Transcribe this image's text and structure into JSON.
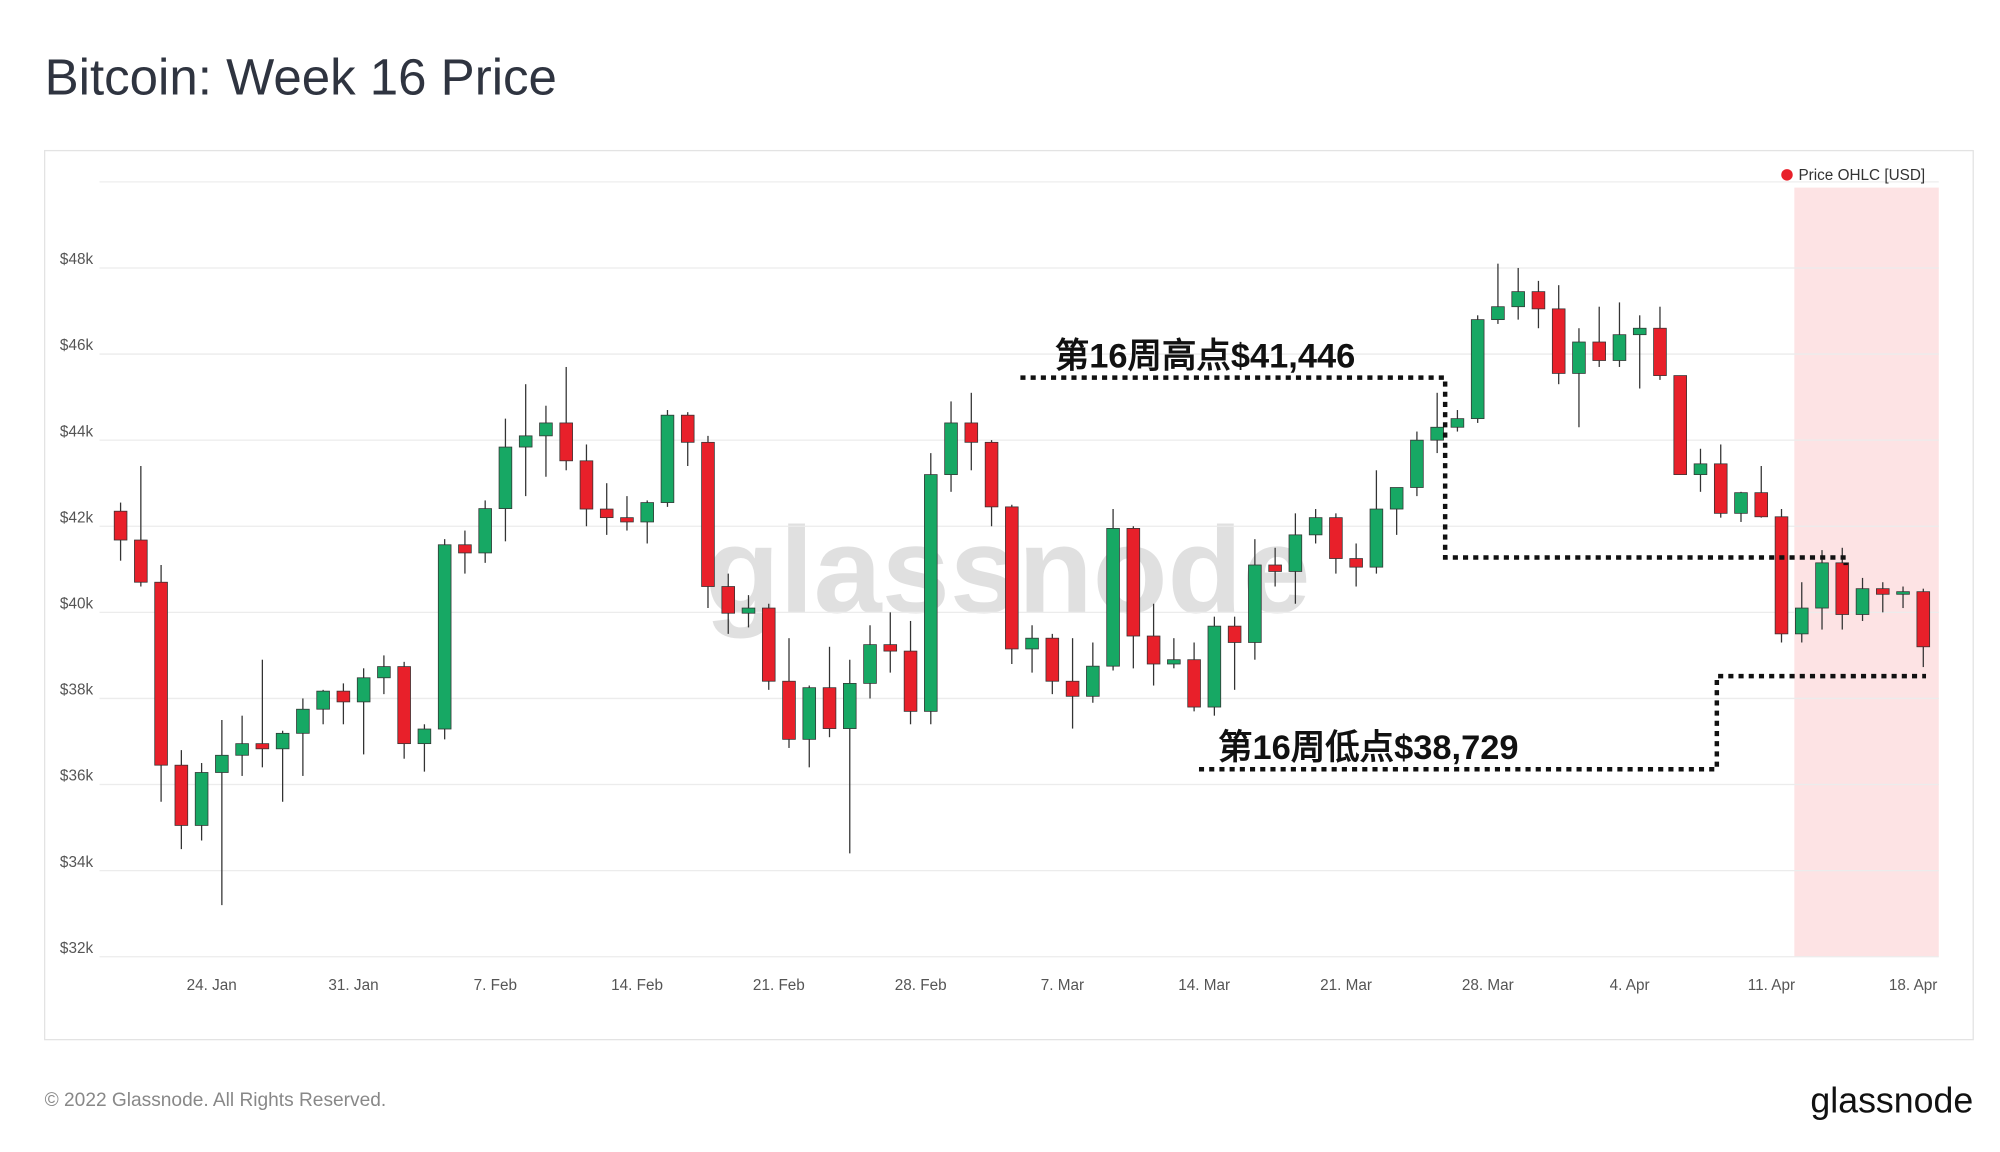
{
  "title": "Bitcoin: Week 16 Price",
  "footer": "© 2022 Glassnode. All Rights Reserved.",
  "logo": "glassnode",
  "chart_data": {
    "type": "candlestick",
    "watermark": "glassnode",
    "x": [
      "19. Jan",
      "20. Jan",
      "21. Jan",
      "22. Jan",
      "23. Jan",
      "24. Jan",
      "25. Jan",
      "26. Jan",
      "27. Jan",
      "28. Jan",
      "29. Jan",
      "30. Jan",
      "31. Jan",
      "1. Feb",
      "2. Feb",
      "3. Feb",
      "4. Feb",
      "5. Feb",
      "6. Feb",
      "7. Feb",
      "8. Feb",
      "9. Feb",
      "10. Feb",
      "11. Feb",
      "12. Feb",
      "13. Feb",
      "14. Feb",
      "15. Feb",
      "16. Feb",
      "17. Feb",
      "18. Feb",
      "19. Feb",
      "20. Feb",
      "21. Feb",
      "22. Feb",
      "23. Feb",
      "24. Feb",
      "25. Feb",
      "26. Feb",
      "27. Feb",
      "28. Feb",
      "1. Mar",
      "2. Mar",
      "3. Mar",
      "4. Mar",
      "5. Mar",
      "6. Mar",
      "7. Mar",
      "8. Mar",
      "9. Mar",
      "10. Mar",
      "11. Mar",
      "12. Mar",
      "13. Mar",
      "14. Mar",
      "15. Mar",
      "16. Mar",
      "17. Mar",
      "18. Mar",
      "19. Mar",
      "20. Mar",
      "21. Mar",
      "22. Mar",
      "23. Mar",
      "24. Mar",
      "25. Mar",
      "26. Mar",
      "27. Mar",
      "28. Mar",
      "29. Mar",
      "30. Mar",
      "31. Mar",
      "1. Apr",
      "2. Apr",
      "3. Apr",
      "4. Apr",
      "5. Apr",
      "6. Apr",
      "7. Apr",
      "8. Apr",
      "9. Apr",
      "10. Apr",
      "11. Apr",
      "12. Apr",
      "13. Apr",
      "14. Apr",
      "15. Apr",
      "16. Apr",
      "17. Apr",
      "18. Apr"
    ],
    "series": [
      {
        "name": "Price OHLC [USD]",
        "color": "#e8202a",
        "up_color": "#17a864",
        "down_color": "#e8202a",
        "open": [
          42350,
          41680,
          40700,
          36450,
          35050,
          36280,
          36680,
          36950,
          36830,
          37190,
          37750,
          38170,
          37920,
          38480,
          38740,
          36950,
          37290,
          41570,
          41380,
          42410,
          43840,
          44100,
          44400,
          43520,
          42400,
          42200,
          42100,
          42550,
          44580,
          43950,
          40600,
          39980,
          40100,
          38400,
          37050,
          38250,
          37300,
          38350,
          39250,
          39100,
          37700,
          43200,
          44400,
          43950,
          42450,
          39150,
          39400,
          38400,
          38050,
          38750,
          41950,
          39450,
          38800,
          38900,
          37800,
          39680,
          39300,
          41100,
          40950,
          41800,
          42200,
          41250,
          41050,
          42400,
          42900,
          44000,
          44300,
          44500,
          46800,
          47100,
          47450,
          47050,
          45550,
          46280,
          45850,
          46450,
          46600,
          45500,
          43200,
          43450,
          42300,
          42780,
          42220,
          39500,
          40100,
          41150,
          39950,
          40550,
          40420,
          40480
        ],
        "high": [
          42550,
          43400,
          41100,
          36800,
          36500,
          37500,
          37600,
          38900,
          37250,
          38000,
          38200,
          38350,
          38700,
          39000,
          38850,
          37400,
          41700,
          41900,
          42600,
          44500,
          45300,
          44800,
          45700,
          43900,
          43000,
          42700,
          42600,
          44700,
          44650,
          44100,
          40900,
          40400,
          40200,
          39400,
          38300,
          39200,
          38900,
          39700,
          40000,
          39800,
          43700,
          44900,
          45100,
          44000,
          42500,
          39700,
          39500,
          39400,
          39300,
          42400,
          42000,
          40200,
          39400,
          39300,
          39900,
          39900,
          41700,
          41500,
          42300,
          42400,
          42300,
          41600,
          43300,
          42900,
          44200,
          45100,
          44700,
          46900,
          48100,
          48000,
          47700,
          47600,
          46600,
          47100,
          47200,
          46900,
          47100,
          45500,
          43800,
          43900,
          42800,
          43400,
          42400,
          40700,
          41446,
          41500,
          40800,
          40700,
          40600,
          40550
        ],
        "low": [
          41200,
          40600,
          35600,
          34500,
          34700,
          33200,
          36200,
          36400,
          35600,
          36200,
          37400,
          37400,
          36700,
          38100,
          36600,
          36300,
          37050,
          40900,
          41150,
          41650,
          42700,
          43150,
          43300,
          42000,
          41800,
          41900,
          41600,
          42450,
          43400,
          40100,
          39500,
          39650,
          38200,
          36850,
          36400,
          37100,
          34400,
          38000,
          38600,
          37400,
          37400,
          42800,
          43300,
          42000,
          38800,
          38600,
          38100,
          37300,
          37900,
          38650,
          38700,
          38300,
          38700,
          37700,
          37600,
          38200,
          38900,
          40600,
          40200,
          41600,
          40900,
          40600,
          40900,
          41800,
          42700,
          43700,
          44200,
          44400,
          46700,
          46800,
          46600,
          45300,
          44300,
          45700,
          45700,
          45200,
          45400,
          43200,
          42800,
          42200,
          42100,
          42200,
          39300,
          39300,
          39600,
          39600,
          39800,
          40000,
          40100,
          38729
        ],
        "close": [
          41680,
          40700,
          36450,
          35050,
          36280,
          36680,
          36950,
          36830,
          37190,
          37750,
          38170,
          37920,
          38480,
          38740,
          36950,
          37290,
          41570,
          41380,
          42410,
          43840,
          44100,
          44400,
          43520,
          42400,
          42200,
          42100,
          42550,
          44580,
          43950,
          40600,
          39980,
          40100,
          38400,
          37050,
          38250,
          37300,
          38350,
          39250,
          39100,
          37700,
          43200,
          44400,
          43950,
          42450,
          39150,
          39400,
          38400,
          38050,
          38750,
          41950,
          39450,
          38800,
          38900,
          37800,
          39680,
          39300,
          41100,
          40950,
          41800,
          42200,
          41250,
          41050,
          42400,
          42900,
          44000,
          44300,
          44500,
          46800,
          47100,
          47450,
          47050,
          45550,
          46280,
          45850,
          46450,
          46600,
          45500,
          43200,
          43450,
          42300,
          42780,
          42220,
          39500,
          40100,
          41150,
          39950,
          40550,
          40420,
          40480,
          39200
        ]
      }
    ],
    "ylim": [
      32000,
      50000
    ],
    "yticks": [
      {
        "value": 32000,
        "label": "$32k"
      },
      {
        "value": 34000,
        "label": "$34k"
      },
      {
        "value": 36000,
        "label": "$36k"
      },
      {
        "value": 38000,
        "label": "$38k"
      },
      {
        "value": 40000,
        "label": "$40k"
      },
      {
        "value": 42000,
        "label": "$42k"
      },
      {
        "value": 44000,
        "label": "$44k"
      },
      {
        "value": 46000,
        "label": "$46k"
      },
      {
        "value": 48000,
        "label": "$48k"
      }
    ],
    "xticks": [
      "24. Jan",
      "31. Jan",
      "7. Feb",
      "14. Feb",
      "21. Feb",
      "28. Feb",
      "7. Mar",
      "14. Mar",
      "21. Mar",
      "28. Mar",
      "4. Apr",
      "11. Apr",
      "18. Apr"
    ],
    "grid": true,
    "legend": "top-right",
    "highlight": {
      "from": "11. Apr",
      "color": "#fde3e4"
    },
    "annotations": [
      "第16周高点$41,446",
      "第16周低点$38,729"
    ]
  }
}
